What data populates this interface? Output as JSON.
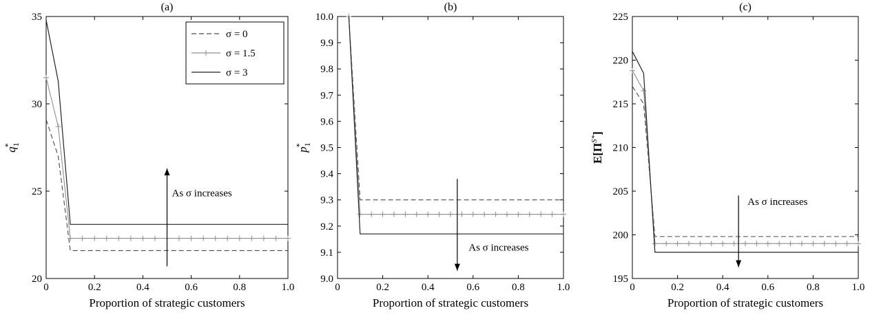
{
  "chart_data": [
    {
      "type": "line",
      "title": "(a)",
      "xlabel": "Proportion of strategic customers",
      "ylabel": "q1*",
      "ylabel_parts": {
        "base": "q",
        "sub": "1",
        "sup": "*"
      },
      "xlim": [
        0,
        1.0
      ],
      "ylim": [
        20,
        35
      ],
      "x_ticks": [
        0,
        0.2,
        0.4,
        0.6,
        0.8,
        1.0
      ],
      "x_tick_labels": [
        "0",
        "0.2",
        "0.4",
        "0.6",
        "0.8",
        "1.0"
      ],
      "y_ticks": [
        20,
        25,
        30,
        35
      ],
      "y_tick_labels": [
        "20",
        "25",
        "30",
        "35"
      ],
      "grid": false,
      "legend": {
        "position": "top-right"
      },
      "series": [
        {
          "name": "σ = 0",
          "style": "dashed",
          "color": "#4a4a4a",
          "x": [
            0,
            0.05,
            0.1,
            1.0
          ],
          "y": [
            29.1,
            27.0,
            21.6,
            21.6
          ]
        },
        {
          "name": "σ = 1.5",
          "style": "plus",
          "color": "#8f8f8f",
          "x": [
            0,
            0.05,
            0.1,
            1.0
          ],
          "y": [
            31.5,
            28.7,
            22.3,
            22.3
          ]
        },
        {
          "name": "σ = 3",
          "style": "solid",
          "color": "#222222",
          "x": [
            0,
            0.05,
            0.1,
            1.0
          ],
          "y": [
            34.8,
            31.3,
            23.1,
            23.1
          ]
        }
      ],
      "annotation": {
        "text": "As σ increases",
        "x": 0.52,
        "y": 24.9,
        "arrow_x": 0.5,
        "arrow_from": 20.7,
        "arrow_to": 26.3
      }
    },
    {
      "type": "line",
      "title": "(b)",
      "xlabel": "Proportion of strategic customers",
      "ylabel": "p1*",
      "ylabel_parts": {
        "base": "p",
        "sub": "1",
        "sup": "*"
      },
      "xlim": [
        0,
        1.0
      ],
      "ylim": [
        9.0,
        10.0
      ],
      "x_ticks": [
        0,
        0.2,
        0.4,
        0.6,
        0.8,
        1.0
      ],
      "x_tick_labels": [
        "0",
        "0.2",
        "0.4",
        "0.6",
        "0.8",
        "1.0"
      ],
      "y_ticks": [
        9.0,
        9.1,
        9.2,
        9.3,
        9.4,
        9.5,
        9.6,
        9.7,
        9.8,
        9.9,
        10.0
      ],
      "y_tick_labels": [
        "9.0",
        "9.1",
        "9.2",
        "9.3",
        "9.4",
        "9.5",
        "9.6",
        "9.7",
        "9.8",
        "9.9",
        "10.0"
      ],
      "grid": false,
      "series": [
        {
          "name": "σ = 0",
          "style": "dashed",
          "color": "#4a4a4a",
          "x": [
            0.05,
            0.1,
            1.0
          ],
          "y": [
            10.0,
            9.3,
            9.3
          ]
        },
        {
          "name": "σ = 1.5",
          "style": "plus",
          "color": "#8f8f8f",
          "x": [
            0.05,
            0.1,
            1.0
          ],
          "y": [
            10.0,
            9.245,
            9.245
          ]
        },
        {
          "name": "σ = 3",
          "style": "solid",
          "color": "#222222",
          "x": [
            0.05,
            0.1,
            1.0
          ],
          "y": [
            10.0,
            9.17,
            9.17
          ]
        }
      ],
      "annotation": {
        "text": "As σ increases",
        "x": 0.58,
        "y": 9.12,
        "arrow_x": 0.53,
        "arrow_from": 9.38,
        "arrow_to": 9.03
      }
    },
    {
      "type": "line",
      "title": "(c)",
      "xlabel": "Proportion of strategic customers",
      "ylabel": "E[ΠS*]",
      "ylabel_parts": {
        "base": "E[Π",
        "sup": "S*",
        "tail": "]"
      },
      "xlim": [
        0,
        1.0
      ],
      "ylim": [
        195,
        225
      ],
      "x_ticks": [
        0,
        0.2,
        0.4,
        0.6,
        0.8,
        1.0
      ],
      "x_tick_labels": [
        "0",
        "0.2",
        "0.4",
        "0.6",
        "0.8",
        "1.0"
      ],
      "y_ticks": [
        195,
        200,
        205,
        210,
        215,
        220,
        225
      ],
      "y_tick_labels": [
        "195",
        "200",
        "205",
        "210",
        "215",
        "220",
        "225"
      ],
      "grid": false,
      "series": [
        {
          "name": "σ = 0",
          "style": "dashed",
          "color": "#4a4a4a",
          "x": [
            0,
            0.05,
            0.1,
            1.0
          ],
          "y": [
            217.0,
            215.0,
            199.8,
            199.8
          ]
        },
        {
          "name": "σ = 1.5",
          "style": "plus",
          "color": "#8f8f8f",
          "x": [
            0,
            0.05,
            0.1,
            1.0
          ],
          "y": [
            218.8,
            216.5,
            199.0,
            199.0
          ]
        },
        {
          "name": "σ = 3",
          "style": "solid",
          "color": "#222222",
          "x": [
            0,
            0.05,
            0.1,
            1.0
          ],
          "y": [
            221.0,
            218.5,
            198.0,
            198.0
          ]
        }
      ],
      "annotation": {
        "text": "As σ increases",
        "x": 0.51,
        "y": 203.8,
        "arrow_x": 0.47,
        "arrow_from": 204.5,
        "arrow_to": 196.3
      }
    }
  ]
}
